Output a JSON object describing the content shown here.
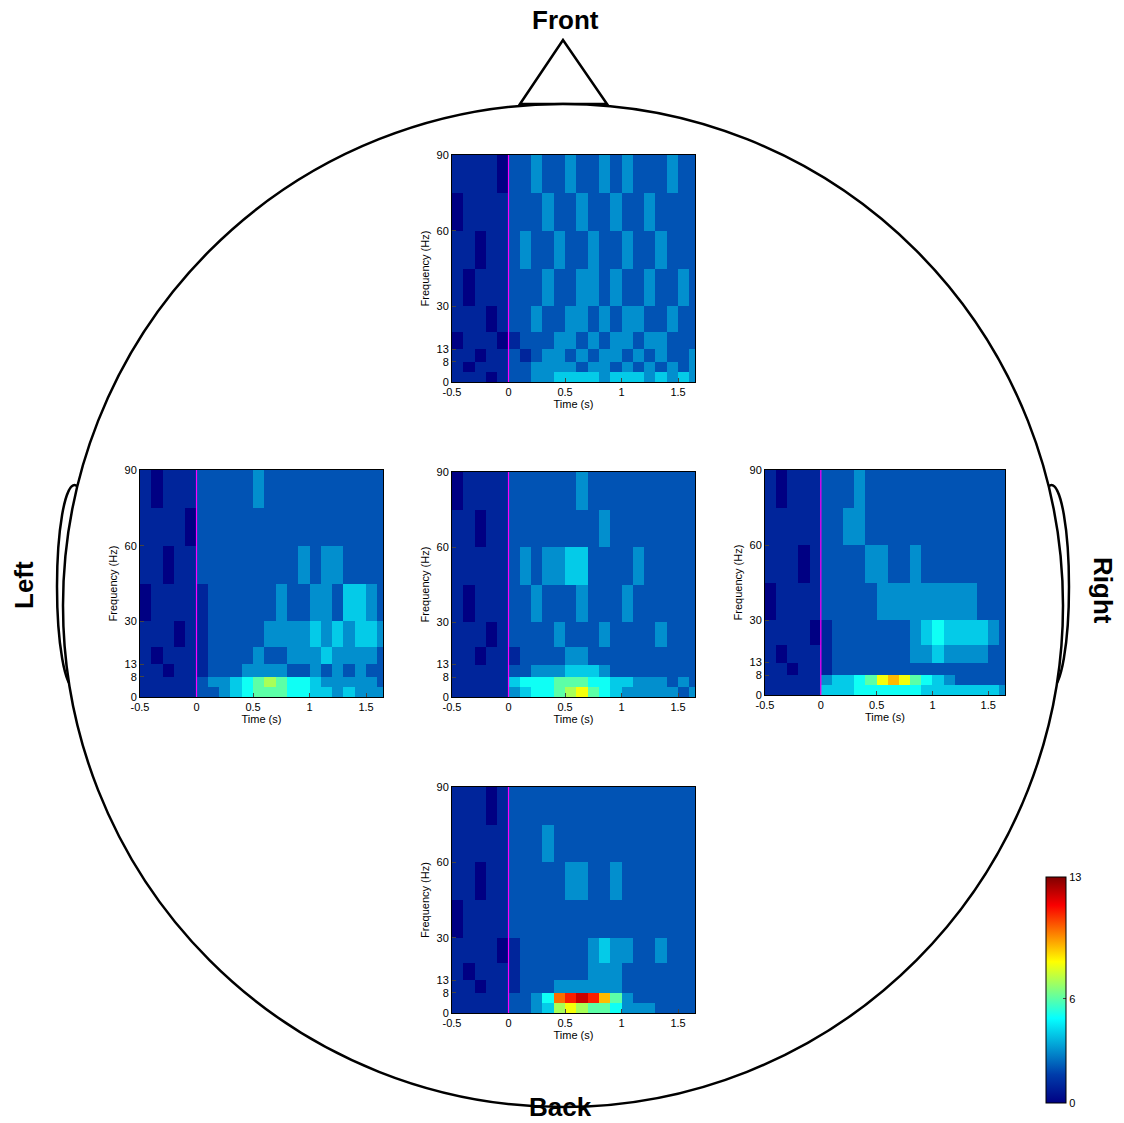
{
  "head_labels": {
    "front": "Front",
    "left": "Left",
    "right": "Right",
    "back": "Back"
  },
  "colorbar": {
    "zlim": [
      0,
      13
    ],
    "zticks": [
      0,
      6,
      13
    ]
  },
  "chart_data": [
    {
      "type": "heatmap",
      "x_label": "Time (s)",
      "y_label": "Frequency (Hz)",
      "x": [
        -0.5,
        -0.4,
        -0.3,
        -0.2,
        -0.1,
        0,
        0.1,
        0.2,
        0.3,
        0.4,
        0.5,
        0.6,
        0.7,
        0.8,
        0.9,
        1,
        1.1,
        1.2,
        1.3,
        1.4,
        1.5,
        1.6,
        1.7
      ],
      "y": [
        0,
        4,
        8,
        13,
        20,
        30,
        45,
        60,
        75,
        90
      ],
      "xlim": [
        -0.5,
        1.65
      ],
      "xticks": [
        -0.5,
        0,
        0.5,
        1,
        1.5
      ],
      "ylim": [
        0,
        90
      ],
      "yticks": [
        0,
        8,
        13,
        30,
        60,
        90
      ],
      "event_time": 0,
      "z": [
        [
          1,
          1,
          1,
          0,
          1,
          2,
          2,
          3,
          3,
          4,
          4,
          4,
          4,
          3,
          4,
          4,
          4,
          3,
          4,
          3,
          4,
          3
        ],
        [
          1,
          0,
          1,
          1,
          1,
          2,
          2,
          3,
          3,
          3,
          3,
          2,
          3,
          3,
          2,
          3,
          2,
          3,
          2,
          3,
          2,
          3
        ],
        [
          1,
          1,
          0,
          1,
          1,
          2,
          1,
          2,
          3,
          3,
          2,
          3,
          2,
          3,
          3,
          2,
          3,
          2,
          3,
          2,
          2,
          3
        ],
        [
          0,
          1,
          1,
          1,
          0,
          1,
          2,
          2,
          2,
          3,
          3,
          2,
          3,
          2,
          3,
          3,
          2,
          3,
          3,
          2,
          2,
          2
        ],
        [
          1,
          1,
          1,
          0,
          1,
          2,
          2,
          3,
          2,
          2,
          3,
          3,
          2,
          3,
          2,
          3,
          3,
          2,
          2,
          3,
          2,
          2
        ],
        [
          1,
          0,
          1,
          1,
          1,
          2,
          2,
          2,
          3,
          2,
          2,
          3,
          3,
          2,
          3,
          2,
          2,
          3,
          2,
          2,
          3,
          2
        ],
        [
          1,
          1,
          0,
          1,
          1,
          2,
          3,
          2,
          2,
          3,
          2,
          2,
          3,
          2,
          2,
          3,
          2,
          2,
          3,
          2,
          2,
          2
        ],
        [
          0,
          1,
          1,
          1,
          1,
          2,
          2,
          2,
          3,
          2,
          2,
          3,
          2,
          2,
          3,
          2,
          2,
          3,
          2,
          2,
          2,
          2
        ],
        [
          1,
          1,
          1,
          1,
          0,
          2,
          2,
          3,
          2,
          2,
          3,
          2,
          2,
          3,
          2,
          3,
          2,
          2,
          2,
          3,
          2,
          2
        ]
      ]
    },
    {
      "type": "heatmap",
      "x_label": "Time (s)",
      "y_label": "Frequency (Hz)",
      "x": [
        -0.5,
        -0.4,
        -0.3,
        -0.2,
        -0.1,
        0,
        0.1,
        0.2,
        0.3,
        0.4,
        0.5,
        0.6,
        0.7,
        0.8,
        0.9,
        1,
        1.1,
        1.2,
        1.3,
        1.4,
        1.5,
        1.6,
        1.7
      ],
      "y": [
        0,
        4,
        8,
        13,
        20,
        30,
        45,
        60,
        75,
        90
      ],
      "xlim": [
        -0.5,
        1.65
      ],
      "xticks": [
        -0.5,
        0,
        0.5,
        1,
        1.5
      ],
      "ylim": [
        0,
        90
      ],
      "yticks": [
        0,
        8,
        13,
        30,
        60,
        90
      ],
      "event_time": 0,
      "z": [
        [
          1,
          1,
          1,
          1,
          1,
          2,
          2,
          3,
          4,
          5,
          6,
          6,
          6,
          5,
          5,
          4,
          4,
          3,
          4,
          3,
          3,
          3
        ],
        [
          1,
          1,
          1,
          1,
          1,
          2,
          3,
          3,
          4,
          5,
          6,
          7,
          6,
          5,
          5,
          4,
          3,
          3,
          3,
          3,
          3,
          2
        ],
        [
          1,
          1,
          0,
          1,
          1,
          1,
          2,
          2,
          2,
          3,
          3,
          3,
          3,
          2,
          2,
          3,
          2,
          3,
          2,
          3,
          2,
          2
        ],
        [
          1,
          0,
          1,
          1,
          1,
          1,
          2,
          2,
          2,
          2,
          3,
          2,
          2,
          3,
          3,
          3,
          4,
          3,
          3,
          3,
          3,
          2
        ],
        [
          1,
          1,
          1,
          0,
          1,
          1,
          2,
          2,
          2,
          2,
          2,
          3,
          3,
          3,
          3,
          4,
          3,
          4,
          3,
          4,
          4,
          3
        ],
        [
          0,
          1,
          1,
          1,
          1,
          1,
          2,
          2,
          2,
          2,
          2,
          2,
          3,
          2,
          2,
          3,
          3,
          2,
          4,
          4,
          3,
          2
        ],
        [
          1,
          1,
          0,
          1,
          1,
          2,
          2,
          2,
          2,
          2,
          2,
          2,
          2,
          2,
          3,
          2,
          3,
          3,
          2,
          2,
          2,
          2
        ],
        [
          1,
          1,
          1,
          1,
          0,
          2,
          2,
          2,
          2,
          2,
          2,
          2,
          2,
          2,
          2,
          2,
          2,
          2,
          2,
          2,
          2,
          2
        ],
        [
          1,
          0,
          1,
          1,
          1,
          2,
          2,
          2,
          2,
          2,
          3,
          2,
          2,
          2,
          2,
          2,
          2,
          2,
          2,
          2,
          2,
          2
        ]
      ]
    },
    {
      "type": "heatmap",
      "x_label": "Time (s)",
      "y_label": "Frequency (Hz)",
      "x": [
        -0.5,
        -0.4,
        -0.3,
        -0.2,
        -0.1,
        0,
        0.1,
        0.2,
        0.3,
        0.4,
        0.5,
        0.6,
        0.7,
        0.8,
        0.9,
        1,
        1.1,
        1.2,
        1.3,
        1.4,
        1.5,
        1.6,
        1.7
      ],
      "y": [
        0,
        4,
        8,
        13,
        20,
        30,
        45,
        60,
        75,
        90
      ],
      "xlim": [
        -0.5,
        1.65
      ],
      "xticks": [
        -0.5,
        0,
        0.5,
        1,
        1.5
      ],
      "ylim": [
        0,
        90
      ],
      "yticks": [
        0,
        8,
        13,
        30,
        60,
        90
      ],
      "event_time": 0,
      "z": [
        [
          1,
          1,
          1,
          1,
          1,
          3,
          4,
          5,
          5,
          6,
          7,
          8,
          6,
          5,
          4,
          3,
          3,
          3,
          3,
          3,
          2,
          3
        ],
        [
          1,
          1,
          1,
          1,
          1,
          4,
          5,
          5,
          5,
          6,
          6,
          6,
          5,
          5,
          4,
          4,
          3,
          3,
          3,
          2,
          3,
          2
        ],
        [
          1,
          1,
          1,
          1,
          1,
          2,
          2,
          3,
          3,
          3,
          4,
          4,
          4,
          3,
          2,
          2,
          2,
          2,
          2,
          2,
          2,
          2
        ],
        [
          1,
          1,
          0,
          1,
          1,
          1,
          2,
          2,
          2,
          2,
          3,
          3,
          2,
          2,
          2,
          2,
          2,
          2,
          2,
          2,
          2,
          2
        ],
        [
          1,
          1,
          1,
          0,
          1,
          2,
          2,
          2,
          2,
          3,
          2,
          2,
          2,
          3,
          2,
          2,
          2,
          2,
          3,
          2,
          2,
          2
        ],
        [
          1,
          0,
          1,
          1,
          1,
          2,
          2,
          3,
          2,
          2,
          2,
          3,
          2,
          2,
          2,
          3,
          2,
          2,
          2,
          2,
          2,
          2
        ],
        [
          1,
          1,
          1,
          1,
          1,
          2,
          3,
          2,
          3,
          3,
          4,
          4,
          2,
          2,
          2,
          2,
          3,
          2,
          2,
          2,
          2,
          2
        ],
        [
          1,
          1,
          0,
          1,
          1,
          2,
          2,
          2,
          2,
          2,
          2,
          2,
          2,
          3,
          2,
          2,
          2,
          2,
          2,
          2,
          2,
          2
        ],
        [
          0,
          1,
          1,
          1,
          1,
          2,
          2,
          2,
          2,
          2,
          2,
          3,
          2,
          2,
          2,
          2,
          2,
          2,
          2,
          2,
          2,
          2
        ]
      ]
    },
    {
      "type": "heatmap",
      "x_label": "Time (s)",
      "y_label": "Frequency (Hz)",
      "x": [
        -0.5,
        -0.4,
        -0.3,
        -0.2,
        -0.1,
        0,
        0.1,
        0.2,
        0.3,
        0.4,
        0.5,
        0.6,
        0.7,
        0.8,
        0.9,
        1,
        1.1,
        1.2,
        1.3,
        1.4,
        1.5,
        1.6,
        1.7
      ],
      "y": [
        0,
        4,
        8,
        13,
        20,
        30,
        45,
        60,
        75,
        90
      ],
      "xlim": [
        -0.5,
        1.65
      ],
      "xticks": [
        -0.5,
        0,
        0.5,
        1,
        1.5
      ],
      "ylim": [
        0,
        90
      ],
      "yticks": [
        0,
        8,
        13,
        30,
        60,
        90
      ],
      "event_time": 0,
      "z": [
        [
          1,
          1,
          1,
          1,
          1,
          4,
          4,
          4,
          5,
          5,
          5,
          5,
          5,
          5,
          4,
          4,
          4,
          4,
          4,
          4,
          4,
          3
        ],
        [
          1,
          1,
          1,
          1,
          1,
          3,
          4,
          4,
          5,
          6,
          8,
          9,
          8,
          6,
          5,
          4,
          3,
          2,
          2,
          2,
          2,
          2
        ],
        [
          1,
          1,
          0,
          1,
          1,
          1,
          2,
          2,
          2,
          2,
          2,
          2,
          2,
          2,
          2,
          2,
          2,
          2,
          2,
          2,
          2,
          2
        ],
        [
          1,
          0,
          1,
          1,
          1,
          1,
          2,
          2,
          2,
          2,
          2,
          2,
          2,
          3,
          3,
          4,
          3,
          3,
          3,
          3,
          2,
          2
        ],
        [
          1,
          1,
          1,
          1,
          0,
          1,
          2,
          2,
          2,
          2,
          2,
          2,
          2,
          3,
          4,
          5,
          4,
          4,
          4,
          4,
          3,
          2
        ],
        [
          0,
          1,
          1,
          1,
          1,
          2,
          2,
          2,
          2,
          2,
          3,
          3,
          3,
          3,
          3,
          3,
          3,
          3,
          3,
          2,
          2,
          2
        ],
        [
          1,
          1,
          1,
          0,
          1,
          2,
          2,
          2,
          2,
          3,
          3,
          2,
          2,
          3,
          2,
          2,
          2,
          2,
          2,
          2,
          2,
          2
        ],
        [
          1,
          1,
          1,
          1,
          1,
          2,
          2,
          3,
          3,
          2,
          2,
          2,
          2,
          2,
          2,
          2,
          2,
          2,
          2,
          2,
          2,
          2
        ],
        [
          1,
          0,
          1,
          1,
          1,
          2,
          2,
          2,
          3,
          2,
          2,
          2,
          2,
          2,
          2,
          2,
          2,
          2,
          2,
          2,
          2,
          2
        ]
      ]
    },
    {
      "type": "heatmap",
      "x_label": "Time (s)",
      "y_label": "Frequency (Hz)",
      "x": [
        -0.5,
        -0.4,
        -0.3,
        -0.2,
        -0.1,
        0,
        0.1,
        0.2,
        0.3,
        0.4,
        0.5,
        0.6,
        0.7,
        0.8,
        0.9,
        1,
        1.1,
        1.2,
        1.3,
        1.4,
        1.5,
        1.6,
        1.7
      ],
      "y": [
        0,
        4,
        8,
        13,
        20,
        30,
        45,
        60,
        75,
        90
      ],
      "xlim": [
        -0.5,
        1.65
      ],
      "xticks": [
        -0.5,
        0,
        0.5,
        1,
        1.5
      ],
      "ylim": [
        0,
        90
      ],
      "yticks": [
        0,
        8,
        13,
        30,
        60,
        90
      ],
      "event_time": 0,
      "z": [
        [
          1,
          1,
          1,
          1,
          1,
          2,
          2,
          3,
          4,
          7,
          8,
          7,
          6,
          6,
          5,
          3,
          3,
          3,
          2,
          2,
          2,
          2
        ],
        [
          1,
          1,
          1,
          1,
          1,
          2,
          2,
          3,
          5,
          10,
          11,
          12,
          11,
          9,
          6,
          3,
          2,
          2,
          2,
          2,
          2,
          2
        ],
        [
          1,
          1,
          0,
          1,
          1,
          1,
          2,
          2,
          2,
          3,
          3,
          3,
          3,
          3,
          3,
          2,
          2,
          2,
          2,
          2,
          2,
          2
        ],
        [
          1,
          0,
          1,
          1,
          1,
          1,
          2,
          2,
          2,
          2,
          2,
          2,
          3,
          3,
          3,
          2,
          2,
          2,
          2,
          2,
          2,
          2
        ],
        [
          1,
          1,
          1,
          1,
          0,
          1,
          2,
          2,
          2,
          2,
          2,
          2,
          3,
          4,
          3,
          3,
          2,
          2,
          3,
          2,
          2,
          2
        ],
        [
          0,
          1,
          1,
          1,
          1,
          2,
          2,
          2,
          2,
          2,
          2,
          2,
          2,
          2,
          2,
          2,
          2,
          2,
          2,
          2,
          2,
          2
        ],
        [
          1,
          1,
          0,
          1,
          1,
          2,
          2,
          2,
          2,
          2,
          3,
          3,
          2,
          2,
          3,
          2,
          2,
          2,
          2,
          2,
          2,
          2
        ],
        [
          1,
          1,
          1,
          1,
          1,
          2,
          2,
          2,
          3,
          2,
          2,
          2,
          2,
          2,
          2,
          2,
          2,
          2,
          2,
          2,
          2,
          2
        ],
        [
          1,
          1,
          1,
          0,
          1,
          2,
          2,
          2,
          2,
          2,
          2,
          2,
          2,
          2,
          2,
          2,
          2,
          2,
          2,
          2,
          2,
          2
        ]
      ]
    }
  ]
}
